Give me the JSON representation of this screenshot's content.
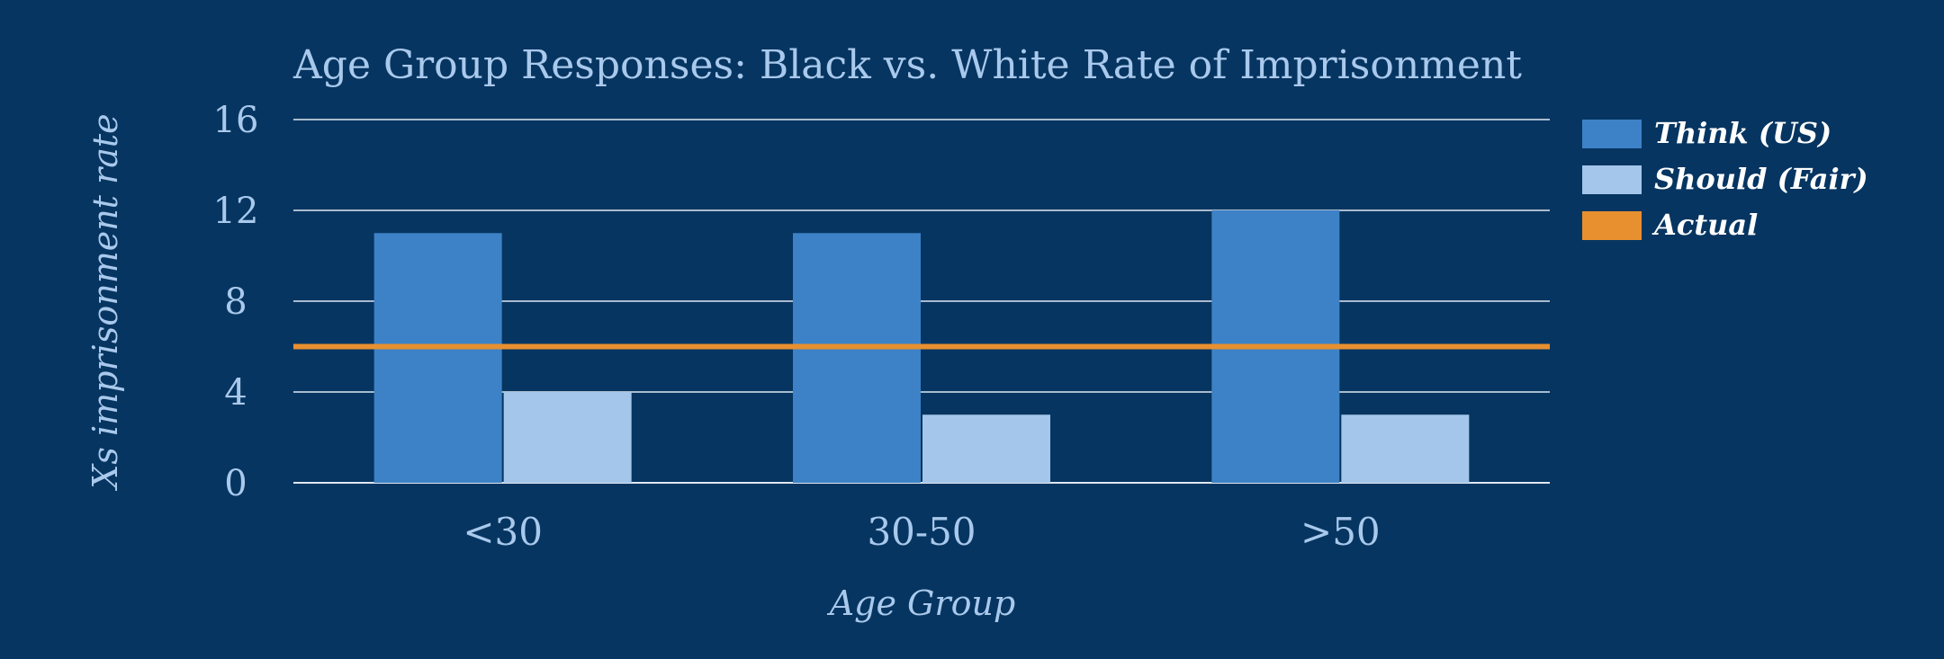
{
  "colors": {
    "background": "#063561",
    "text": "#a9c9ec",
    "grid": "#dfe8f3",
    "think": "#3d82c6",
    "should": "#a3c6ea",
    "actual": "#e8902f",
    "legend_text": "#ffffff"
  },
  "chart_data": {
    "type": "bar",
    "title": "Age Group Responses: Black vs. White Rate of Imprisonment",
    "xlabel": "Age Group",
    "ylabel": "Xs imprisonment rate",
    "categories": [
      "<30",
      "30-50",
      ">50"
    ],
    "series": [
      {
        "name": "Think (US)",
        "type": "bar",
        "values": [
          11,
          11,
          12
        ]
      },
      {
        "name": "Should (Fair)",
        "type": "bar",
        "values": [
          4,
          3,
          3
        ]
      },
      {
        "name": "Actual",
        "type": "line",
        "values": [
          6,
          6,
          6
        ]
      }
    ],
    "ylim": [
      0,
      16
    ],
    "yticks": [
      "0",
      "4",
      "8",
      "12",
      "16"
    ],
    "grid": true,
    "legend_position": "right"
  }
}
